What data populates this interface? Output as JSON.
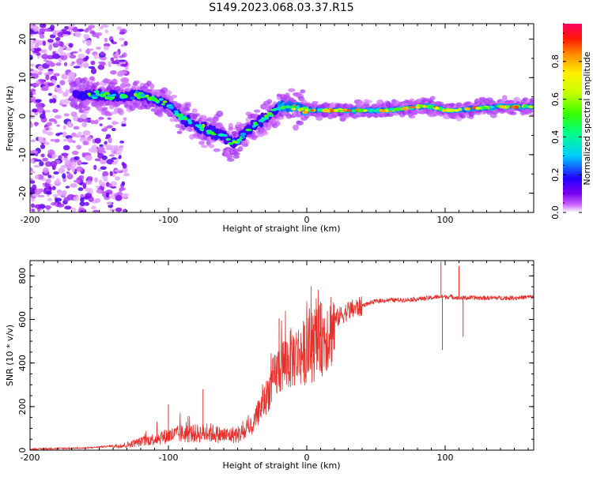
{
  "title": "S149.2023.068.03.37.R15",
  "chart_data": [
    {
      "type": "heatmap",
      "xlabel": "Height of straight line (km)",
      "ylabel": "Frequency (Hz)",
      "xlim": [
        -200,
        164
      ],
      "ylim": [
        -25,
        24
      ],
      "x_ticks": [
        -200,
        -100,
        0,
        100
      ],
      "y_ticks": [
        -20,
        -10,
        0,
        10,
        20
      ],
      "colorbar": {
        "label": "Normalized spectral amplitude",
        "range": [
          0,
          1
        ],
        "ticks": [
          0.0,
          0.2,
          0.4,
          0.6,
          0.8
        ],
        "tick_labels": [
          "0.0",
          "0.2",
          "0.4",
          "0.6",
          "0.8"
        ]
      },
      "ridge": {
        "x": [
          -165,
          -150,
          -135,
          -125,
          -110,
          -100,
          -90,
          -80,
          -70,
          -60,
          -55,
          -50,
          -45,
          -40,
          -35,
          -30,
          -25,
          -20,
          -10,
          0,
          20,
          40,
          60,
          80,
          90,
          100,
          110,
          120,
          140,
          164
        ],
        "y": [
          5.5,
          5.5,
          5.0,
          5.5,
          4.5,
          3.0,
          -0.5,
          -2.5,
          -4.0,
          -5.0,
          -7.0,
          -6.5,
          -4.5,
          -3.0,
          -1.5,
          -0.5,
          0.5,
          2.5,
          2.5,
          1.5,
          1.5,
          1.5,
          1.5,
          2.5,
          2.5,
          1.5,
          1.5,
          2.0,
          2.5,
          2.5
        ]
      },
      "noise_region_x": [
        -200,
        -140
      ]
    },
    {
      "type": "line",
      "xlabel": "Height of straight line (km)",
      "ylabel": "SNR (10 * v/v)",
      "xlim": [
        -200,
        164
      ],
      "ylim": [
        0,
        870
      ],
      "x_ticks": [
        -200,
        -100,
        0,
        100
      ],
      "y_ticks": [
        0,
        200,
        400,
        600,
        800
      ],
      "color": "#e8302a",
      "series": [
        {
          "x": [
            -200,
            -180,
            -160,
            -150,
            -140,
            -130,
            -120,
            -110,
            -100,
            -90,
            -80,
            -70,
            -60,
            -50,
            -40,
            -35,
            -30,
            -25,
            -20,
            -15,
            -10,
            -5,
            0,
            5,
            10,
            15,
            20,
            25,
            30,
            40,
            50,
            60,
            70,
            80,
            90,
            95,
            100,
            105,
            110,
            120,
            130,
            140,
            150,
            164
          ],
          "y": [
            5,
            8,
            10,
            15,
            20,
            25,
            40,
            55,
            70,
            80,
            80,
            85,
            70,
            75,
            100,
            180,
            240,
            320,
            390,
            420,
            440,
            455,
            470,
            490,
            520,
            560,
            600,
            625,
            645,
            665,
            685,
            690,
            690,
            695,
            700,
            705,
            705,
            705,
            700,
            700,
            700,
            700,
            700,
            705
          ]
        }
      ],
      "spikes": [
        {
          "x": -100,
          "y": 210
        },
        {
          "x": -75,
          "y": 280
        },
        {
          "x": -20,
          "y": 605
        },
        {
          "x": 10,
          "y": 680
        },
        {
          "x": 97,
          "y": 865
        },
        {
          "x": 98,
          "y": 460
        },
        {
          "x": 110,
          "y": 845
        },
        {
          "x": 113,
          "y": 520
        }
      ]
    }
  ]
}
